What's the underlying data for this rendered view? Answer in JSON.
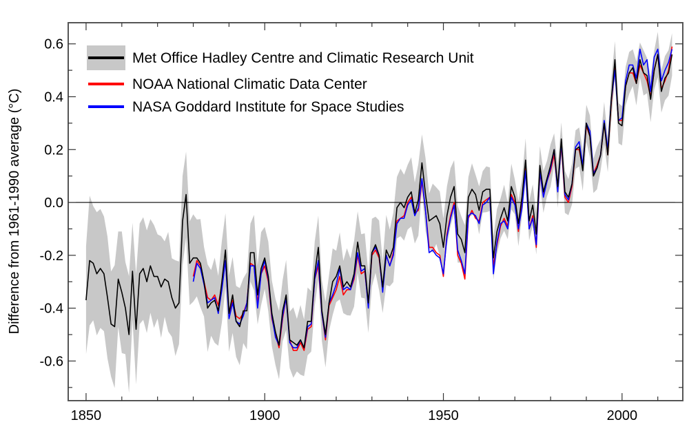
{
  "chart_data": {
    "type": "line",
    "title": "",
    "xlabel": "",
    "ylabel": "Difference from 1961-1990 average (°C)",
    "xlim": [
      1845,
      2017
    ],
    "ylim": [
      -0.75,
      0.68
    ],
    "x_ticks": [
      1850,
      1900,
      1950,
      2000
    ],
    "x_tick_labels": [
      "1850",
      "1900",
      "1950",
      "2000"
    ],
    "x_minor_step": 10,
    "y_ticks": [
      -0.6,
      -0.4,
      -0.2,
      0.0,
      0.2,
      0.4,
      0.6
    ],
    "y_tick_labels": [
      "-0.6",
      "-0.4",
      "-0.2",
      "0.0",
      "0.2",
      "0.4",
      "0.6"
    ],
    "zero_line": true,
    "grid": false,
    "legend_placement": "top-left",
    "series": [
      {
        "name": "Met Office Hadley Centre and Climatic Research Unit",
        "color": "#000000",
        "start_year": 1850,
        "values": [
          -0.37,
          -0.22,
          -0.23,
          -0.27,
          -0.25,
          -0.27,
          -0.36,
          -0.46,
          -0.47,
          -0.29,
          -0.34,
          -0.4,
          -0.5,
          -0.26,
          -0.48,
          -0.27,
          -0.25,
          -0.3,
          -0.24,
          -0.28,
          -0.28,
          -0.32,
          -0.29,
          -0.3,
          -0.36,
          -0.4,
          -0.38,
          -0.07,
          0.03,
          -0.23,
          -0.21,
          -0.21,
          -0.23,
          -0.3,
          -0.4,
          -0.38,
          -0.37,
          -0.41,
          -0.3,
          -0.18,
          -0.42,
          -0.35,
          -0.45,
          -0.47,
          -0.41,
          -0.41,
          -0.19,
          -0.19,
          -0.35,
          -0.25,
          -0.21,
          -0.28,
          -0.42,
          -0.49,
          -0.54,
          -0.41,
          -0.35,
          -0.52,
          -0.53,
          -0.54,
          -0.52,
          -0.55,
          -0.45,
          -0.45,
          -0.27,
          -0.17,
          -0.41,
          -0.5,
          -0.38,
          -0.3,
          -0.28,
          -0.24,
          -0.32,
          -0.3,
          -0.32,
          -0.27,
          -0.15,
          -0.24,
          -0.24,
          -0.38,
          -0.19,
          -0.16,
          -0.2,
          -0.32,
          -0.18,
          -0.21,
          -0.17,
          -0.02,
          0.0,
          -0.02,
          0.02,
          0.04,
          -0.04,
          0.01,
          0.15,
          0.03,
          -0.07,
          -0.06,
          -0.05,
          -0.08,
          -0.17,
          -0.05,
          0.02,
          0.06,
          -0.12,
          -0.14,
          -0.19,
          0.02,
          0.05,
          0.03,
          -0.03,
          0.04,
          0.05,
          0.05,
          -0.21,
          -0.11,
          -0.06,
          -0.02,
          -0.07,
          0.06,
          0.02,
          -0.08,
          0.02,
          0.16,
          -0.07,
          -0.01,
          -0.12,
          0.14,
          0.04,
          0.09,
          0.14,
          0.2,
          0.06,
          0.24,
          0.04,
          0.02,
          0.07,
          0.2,
          0.21,
          0.12,
          0.3,
          0.25,
          0.1,
          0.13,
          0.18,
          0.3,
          0.18,
          0.39,
          0.54,
          0.3,
          0.29,
          0.44,
          0.49,
          0.51,
          0.45,
          0.54,
          0.49,
          0.48,
          0.39,
          0.5,
          0.56,
          0.42,
          0.47,
          0.49,
          0.56
        ],
        "uncertainty_band": {
          "color": "#c8c8c8",
          "years": [
            1850,
            1860,
            1870,
            1880,
            1900,
            1920,
            1945,
            1960,
            1980,
            2000,
            2014
          ],
          "halfwidth": [
            0.22,
            0.2,
            0.17,
            0.15,
            0.12,
            0.11,
            0.12,
            0.08,
            0.07,
            0.07,
            0.08
          ]
        }
      },
      {
        "name": "NOAA National Climatic Data Center",
        "color": "#ff0000",
        "start_year": 1880,
        "values": [
          -0.28,
          -0.22,
          -0.24,
          -0.3,
          -0.36,
          -0.37,
          -0.35,
          -0.39,
          -0.31,
          -0.22,
          -0.42,
          -0.37,
          -0.43,
          -0.44,
          -0.42,
          -0.38,
          -0.23,
          -0.24,
          -0.38,
          -0.27,
          -0.24,
          -0.3,
          -0.44,
          -0.5,
          -0.55,
          -0.44,
          -0.36,
          -0.52,
          -0.56,
          -0.56,
          -0.53,
          -0.56,
          -0.48,
          -0.47,
          -0.29,
          -0.24,
          -0.42,
          -0.52,
          -0.39,
          -0.36,
          -0.33,
          -0.28,
          -0.35,
          -0.33,
          -0.33,
          -0.29,
          -0.2,
          -0.27,
          -0.26,
          -0.39,
          -0.2,
          -0.18,
          -0.21,
          -0.33,
          -0.2,
          -0.24,
          -0.19,
          -0.07,
          -0.06,
          -0.05,
          0.0,
          0.02,
          -0.04,
          -0.03,
          0.08,
          -0.03,
          -0.17,
          -0.17,
          -0.19,
          -0.2,
          -0.28,
          -0.12,
          -0.05,
          0.0,
          -0.2,
          -0.23,
          -0.29,
          -0.06,
          -0.03,
          -0.06,
          -0.07,
          0.0,
          0.01,
          0.02,
          -0.24,
          -0.16,
          -0.09,
          -0.06,
          -0.09,
          0.03,
          0.0,
          -0.11,
          0.0,
          0.13,
          -0.1,
          -0.05,
          -0.17,
          0.11,
          0.03,
          0.08,
          0.12,
          0.18,
          0.05,
          0.22,
          0.02,
          0.0,
          0.06,
          0.2,
          0.2,
          0.13,
          0.29,
          0.25,
          0.11,
          0.14,
          0.18,
          0.3,
          0.18,
          0.38,
          0.51,
          0.31,
          0.31,
          0.44,
          0.49,
          0.49,
          0.45,
          0.52,
          0.49,
          0.46,
          0.4,
          0.5,
          0.56,
          0.43,
          0.46,
          0.5,
          0.59
        ]
      },
      {
        "name": "NASA Goddard Institute for Space Studies",
        "color": "#0000ff",
        "start_year": 1880,
        "values": [
          -0.3,
          -0.23,
          -0.25,
          -0.31,
          -0.38,
          -0.37,
          -0.36,
          -0.42,
          -0.33,
          -0.22,
          -0.44,
          -0.38,
          -0.45,
          -0.46,
          -0.43,
          -0.38,
          -0.24,
          -0.24,
          -0.4,
          -0.27,
          -0.22,
          -0.29,
          -0.43,
          -0.51,
          -0.54,
          -0.43,
          -0.36,
          -0.53,
          -0.55,
          -0.55,
          -0.52,
          -0.55,
          -0.47,
          -0.46,
          -0.29,
          -0.22,
          -0.42,
          -0.51,
          -0.38,
          -0.35,
          -0.31,
          -0.25,
          -0.33,
          -0.32,
          -0.33,
          -0.28,
          -0.19,
          -0.26,
          -0.25,
          -0.4,
          -0.19,
          -0.17,
          -0.2,
          -0.34,
          -0.2,
          -0.24,
          -0.2,
          -0.08,
          -0.06,
          -0.06,
          -0.01,
          0.01,
          -0.05,
          -0.02,
          0.09,
          -0.03,
          -0.19,
          -0.18,
          -0.2,
          -0.21,
          -0.27,
          -0.13,
          -0.06,
          -0.01,
          -0.18,
          -0.22,
          -0.27,
          -0.05,
          -0.04,
          -0.05,
          -0.08,
          -0.01,
          0.0,
          0.02,
          -0.27,
          -0.15,
          -0.08,
          -0.07,
          -0.1,
          0.02,
          -0.01,
          -0.1,
          -0.02,
          0.12,
          -0.1,
          -0.06,
          -0.16,
          0.12,
          0.02,
          0.08,
          0.13,
          0.2,
          0.04,
          0.23,
          0.03,
          0.01,
          0.07,
          0.21,
          0.23,
          0.14,
          0.3,
          0.27,
          0.11,
          0.13,
          0.18,
          0.31,
          0.2,
          0.39,
          0.5,
          0.31,
          0.32,
          0.46,
          0.52,
          0.52,
          0.47,
          0.58,
          0.52,
          0.54,
          0.42,
          0.55,
          0.58,
          0.46,
          0.5,
          0.53,
          0.58
        ]
      }
    ]
  }
}
